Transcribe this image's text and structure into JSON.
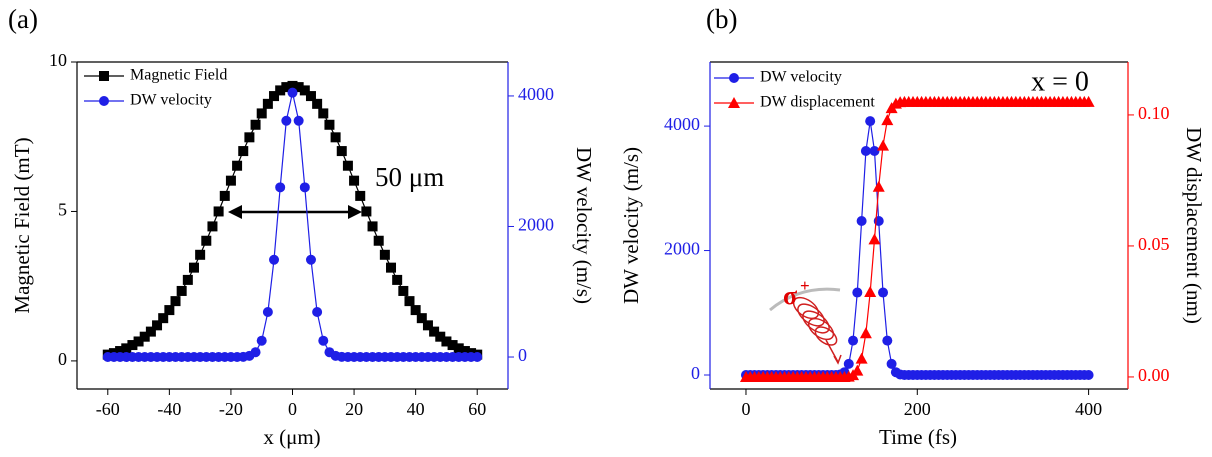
{
  "panels": [
    "(a)",
    "(b)"
  ],
  "chart_data": [
    {
      "type": "line",
      "xlabel": "x (μm)",
      "ylabel": "Magnetic Field (mT)",
      "y2label": "DW velocity (m/s)",
      "annotation": "50 μm",
      "legend": "upper left",
      "xlim": [
        -70,
        70
      ],
      "xticks": [
        -60,
        -40,
        -20,
        0,
        20,
        40,
        60
      ],
      "ylim": [
        -0.94,
        10
      ],
      "yticks": [
        0,
        5,
        10
      ],
      "y2lim": [
        -490,
        4520
      ],
      "y2ticks": [
        0,
        2000,
        4000
      ],
      "x": [
        -60,
        -58,
        -56,
        -54,
        -52,
        -50,
        -48,
        -46,
        -44,
        -42,
        -40,
        -38,
        -36,
        -34,
        -32,
        -30,
        -28,
        -26,
        -24,
        -22,
        -20,
        -18,
        -16,
        -14,
        -12,
        -10,
        -8,
        -6,
        -4,
        -2,
        0,
        2,
        4,
        6,
        8,
        10,
        12,
        14,
        16,
        18,
        20,
        22,
        24,
        26,
        28,
        30,
        32,
        34,
        36,
        38,
        40,
        42,
        44,
        46,
        48,
        50,
        52,
        54,
        56,
        58,
        60
      ],
      "series": [
        {
          "name": "Magnetic Field",
          "color": "#000000",
          "marker": "square",
          "values": [
            0.21,
            0.26,
            0.33,
            0.42,
            0.53,
            0.65,
            0.81,
            0.98,
            1.19,
            1.43,
            1.7,
            2.0,
            2.34,
            2.71,
            3.12,
            3.55,
            4.02,
            4.5,
            5.0,
            5.52,
            6.03,
            6.53,
            7.02,
            7.48,
            7.9,
            8.28,
            8.6,
            8.86,
            9.05,
            9.16,
            9.2,
            9.16,
            9.05,
            8.86,
            8.6,
            8.28,
            7.9,
            7.48,
            7.02,
            6.53,
            6.03,
            5.52,
            5.0,
            4.5,
            4.02,
            3.55,
            3.12,
            2.71,
            2.34,
            2.0,
            1.7,
            1.43,
            1.19,
            0.98,
            0.81,
            0.65,
            0.53,
            0.42,
            0.33,
            0.26,
            0.21
          ]
        },
        {
          "name": "DW velocity",
          "color": "#1f1fe6",
          "marker": "circle",
          "axis": "y2",
          "values": [
            0,
            0,
            0,
            0,
            0,
            0,
            0,
            0,
            0,
            0,
            0,
            0,
            0,
            0,
            0,
            0,
            0,
            0,
            0,
            0,
            0,
            0,
            3,
            18,
            74,
            250,
            690,
            1490,
            2600,
            3620,
            4050,
            3620,
            2600,
            1490,
            690,
            250,
            74,
            18,
            3,
            0,
            0,
            0,
            0,
            0,
            0,
            0,
            0,
            0,
            0,
            0,
            0,
            0,
            0,
            0,
            0,
            0,
            0,
            0,
            0,
            0,
            0
          ]
        }
      ]
    },
    {
      "type": "line",
      "xlabel": "Time (fs)",
      "ylabel": "DW velocity (m/s)",
      "y2label": "DW displacement (nm)",
      "annotation": "x = 0",
      "symbol": "σ",
      "symbol_sup": "+",
      "legend": "upper left",
      "xlim": [
        -42,
        446
      ],
      "xticks": [
        0,
        200,
        400
      ],
      "ylim": [
        -225,
        5030
      ],
      "yticks": [
        0,
        2000,
        4000
      ],
      "y2lim": [
        -0.0046,
        0.1202
      ],
      "y2ticks": [
        {
          "value": 0,
          "label": "0.00"
        },
        {
          "value": 0.05,
          "label": "0.05"
        },
        {
          "value": 0.1,
          "label": "0.10"
        }
      ],
      "x": [
        0,
        5,
        10,
        15,
        20,
        25,
        30,
        35,
        40,
        45,
        50,
        55,
        60,
        65,
        70,
        75,
        80,
        85,
        90,
        95,
        100,
        105,
        110,
        115,
        120,
        125,
        130,
        135,
        140,
        145,
        150,
        155,
        160,
        165,
        170,
        175,
        180,
        185,
        190,
        195,
        200,
        205,
        210,
        215,
        220,
        225,
        230,
        235,
        240,
        245,
        250,
        255,
        260,
        265,
        270,
        275,
        280,
        285,
        290,
        295,
        300,
        305,
        310,
        315,
        320,
        325,
        330,
        335,
        340,
        345,
        350,
        355,
        360,
        365,
        370,
        375,
        380,
        385,
        390,
        395,
        400
      ],
      "series": [
        {
          "name": "DW velocity",
          "color": "#1f1fe6",
          "marker": "circle",
          "values": [
            0,
            0,
            0,
            0,
            0,
            0,
            0,
            0,
            0,
            0,
            0,
            0,
            0,
            0,
            0,
            0,
            0,
            0,
            0,
            0,
            0,
            0,
            9,
            45,
            179,
            552,
            1325,
            2475,
            3600,
            4080,
            3600,
            2475,
            1325,
            552,
            179,
            45,
            9,
            0,
            0,
            0,
            0,
            0,
            0,
            0,
            0,
            0,
            0,
            0,
            0,
            0,
            0,
            0,
            0,
            0,
            0,
            0,
            0,
            0,
            0,
            0,
            0,
            0,
            0,
            0,
            0,
            0,
            0,
            0,
            0,
            0,
            0,
            0,
            0,
            0,
            0,
            0,
            0,
            0,
            0,
            0,
            0
          ]
        },
        {
          "name": "DW displacement",
          "color": "#ff0000",
          "marker": "triangle",
          "axis": "y2",
          "values": [
            0,
            0,
            0,
            0,
            0,
            0,
            0,
            0,
            0,
            0,
            0,
            0,
            0,
            0,
            0,
            0,
            0,
            0,
            0,
            0,
            0,
            0,
            0,
            0,
            0.0001,
            0.0007,
            0.0024,
            0.007,
            0.0167,
            0.0324,
            0.0525,
            0.0726,
            0.0883,
            0.098,
            0.1026,
            0.1043,
            0.1049,
            0.105,
            0.105,
            0.105,
            0.105,
            0.105,
            0.105,
            0.105,
            0.105,
            0.105,
            0.105,
            0.105,
            0.105,
            0.105,
            0.105,
            0.105,
            0.105,
            0.105,
            0.105,
            0.105,
            0.105,
            0.105,
            0.105,
            0.105,
            0.105,
            0.105,
            0.105,
            0.105,
            0.105,
            0.105,
            0.105,
            0.105,
            0.105,
            0.105,
            0.105,
            0.105,
            0.105,
            0.105,
            0.105,
            0.105,
            0.105,
            0.105,
            0.105,
            0.105,
            0.105
          ]
        }
      ]
    }
  ]
}
